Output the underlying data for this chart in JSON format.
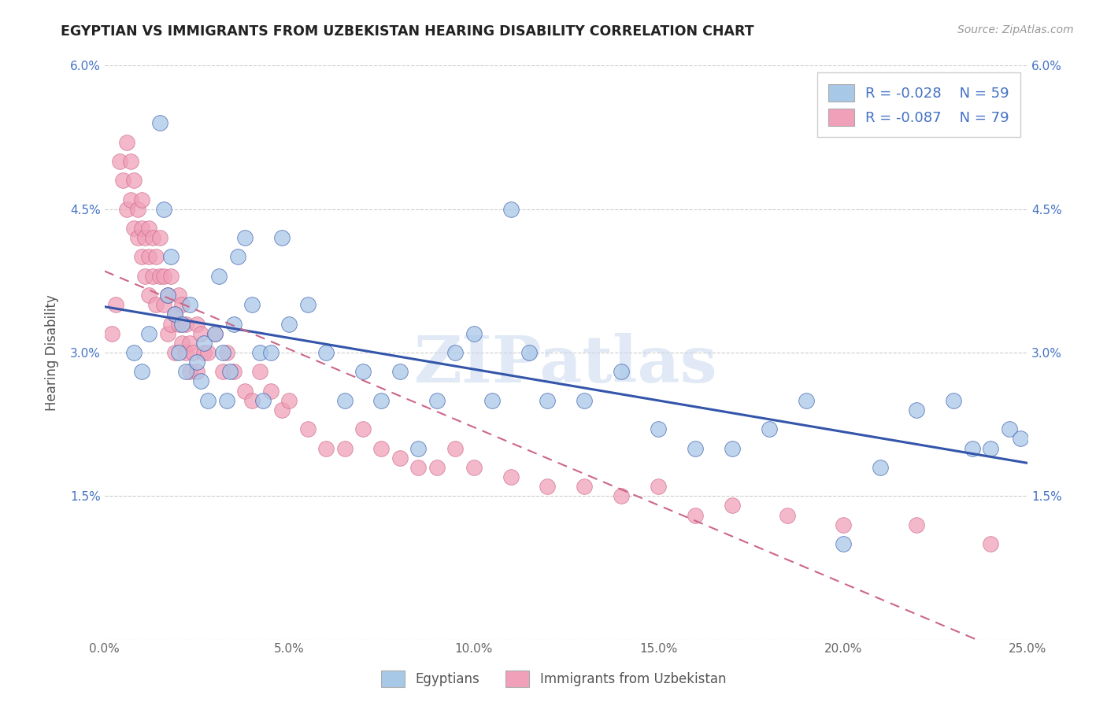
{
  "title": "EGYPTIAN VS IMMIGRANTS FROM UZBEKISTAN HEARING DISABILITY CORRELATION CHART",
  "source": "Source: ZipAtlas.com",
  "ylabel": "Hearing Disability",
  "xlim": [
    0.0,
    0.25
  ],
  "ylim": [
    0.0,
    0.06
  ],
  "xticks": [
    0.0,
    0.05,
    0.1,
    0.15,
    0.2,
    0.25
  ],
  "xtick_labels": [
    "0.0%",
    "5.0%",
    "10.0%",
    "15.0%",
    "20.0%",
    "25.0%"
  ],
  "yticks": [
    0.0,
    0.015,
    0.03,
    0.045,
    0.06
  ],
  "ytick_labels": [
    "",
    "1.5%",
    "3.0%",
    "4.5%",
    "6.0%"
  ],
  "legend_r1": "R = -0.028",
  "legend_n1": "N = 59",
  "legend_r2": "R = -0.087",
  "legend_n2": "N = 79",
  "color_blue": "#A8C8E8",
  "color_pink": "#F0A0B8",
  "color_blue_line": "#3355AA",
  "color_pink_line": "#CC6688",
  "watermark": "ZIPatlas",
  "background_color": "#FFFFFF",
  "egyptians_x": [
    0.008,
    0.01,
    0.012,
    0.015,
    0.016,
    0.017,
    0.018,
    0.019,
    0.02,
    0.021,
    0.022,
    0.023,
    0.025,
    0.026,
    0.027,
    0.028,
    0.03,
    0.031,
    0.032,
    0.033,
    0.034,
    0.035,
    0.036,
    0.038,
    0.04,
    0.042,
    0.043,
    0.045,
    0.048,
    0.05,
    0.055,
    0.06,
    0.065,
    0.07,
    0.075,
    0.08,
    0.085,
    0.09,
    0.095,
    0.1,
    0.105,
    0.11,
    0.115,
    0.12,
    0.13,
    0.14,
    0.15,
    0.16,
    0.17,
    0.18,
    0.19,
    0.2,
    0.21,
    0.22,
    0.23,
    0.235,
    0.24,
    0.245,
    0.248
  ],
  "egyptians_y": [
    0.03,
    0.028,
    0.032,
    0.054,
    0.045,
    0.036,
    0.04,
    0.034,
    0.03,
    0.033,
    0.028,
    0.035,
    0.029,
    0.027,
    0.031,
    0.025,
    0.032,
    0.038,
    0.03,
    0.025,
    0.028,
    0.033,
    0.04,
    0.042,
    0.035,
    0.03,
    0.025,
    0.03,
    0.042,
    0.033,
    0.035,
    0.03,
    0.025,
    0.028,
    0.025,
    0.028,
    0.02,
    0.025,
    0.03,
    0.032,
    0.025,
    0.045,
    0.03,
    0.025,
    0.025,
    0.028,
    0.022,
    0.02,
    0.02,
    0.022,
    0.025,
    0.01,
    0.018,
    0.024,
    0.025,
    0.02,
    0.02,
    0.022,
    0.021
  ],
  "uzbek_x": [
    0.002,
    0.003,
    0.004,
    0.005,
    0.006,
    0.006,
    0.007,
    0.007,
    0.008,
    0.008,
    0.009,
    0.009,
    0.01,
    0.01,
    0.01,
    0.011,
    0.011,
    0.012,
    0.012,
    0.012,
    0.013,
    0.013,
    0.014,
    0.014,
    0.015,
    0.015,
    0.016,
    0.016,
    0.017,
    0.017,
    0.018,
    0.018,
    0.019,
    0.019,
    0.02,
    0.02,
    0.021,
    0.021,
    0.022,
    0.022,
    0.023,
    0.023,
    0.024,
    0.025,
    0.025,
    0.026,
    0.027,
    0.028,
    0.03,
    0.032,
    0.033,
    0.035,
    0.038,
    0.04,
    0.042,
    0.045,
    0.048,
    0.05,
    0.055,
    0.06,
    0.065,
    0.07,
    0.075,
    0.08,
    0.085,
    0.09,
    0.095,
    0.1,
    0.11,
    0.12,
    0.13,
    0.14,
    0.15,
    0.16,
    0.17,
    0.185,
    0.2,
    0.22,
    0.24
  ],
  "uzbek_y": [
    0.032,
    0.035,
    0.05,
    0.048,
    0.052,
    0.045,
    0.05,
    0.046,
    0.043,
    0.048,
    0.042,
    0.045,
    0.04,
    0.043,
    0.046,
    0.038,
    0.042,
    0.04,
    0.043,
    0.036,
    0.042,
    0.038,
    0.04,
    0.035,
    0.038,
    0.042,
    0.035,
    0.038,
    0.036,
    0.032,
    0.033,
    0.038,
    0.03,
    0.034,
    0.033,
    0.036,
    0.031,
    0.035,
    0.03,
    0.033,
    0.028,
    0.031,
    0.03,
    0.033,
    0.028,
    0.032,
    0.03,
    0.03,
    0.032,
    0.028,
    0.03,
    0.028,
    0.026,
    0.025,
    0.028,
    0.026,
    0.024,
    0.025,
    0.022,
    0.02,
    0.02,
    0.022,
    0.02,
    0.019,
    0.018,
    0.018,
    0.02,
    0.018,
    0.017,
    0.016,
    0.016,
    0.015,
    0.016,
    0.013,
    0.014,
    0.013,
    0.012,
    0.012,
    0.01
  ]
}
